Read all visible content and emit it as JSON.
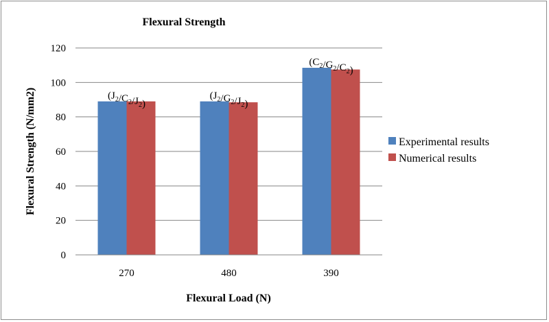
{
  "chart_data": {
    "type": "bar",
    "title": "Flexural Strength",
    "xlabel": "Flexural Load (N)",
    "ylabel": "Flexural Strength (N/mm2)",
    "categories": [
      "270",
      "480",
      "390"
    ],
    "category_annotations": [
      {
        "parts": [
          [
            "J",
            "2"
          ],
          [
            "/C",
            "2"
          ],
          [
            "/J",
            "2"
          ]
        ]
      },
      {
        "parts": [
          [
            "J",
            "2"
          ],
          [
            "/G",
            "2"
          ],
          [
            "/J",
            "2"
          ]
        ]
      },
      {
        "parts": [
          [
            "C",
            "2"
          ],
          [
            "/G",
            "2"
          ],
          [
            "/C",
            "2"
          ]
        ]
      }
    ],
    "series": [
      {
        "name": "Experimental results",
        "values": [
          89,
          89,
          108.5
        ],
        "color": "#4f81bd"
      },
      {
        "name": "Numerical results",
        "values": [
          89,
          88.5,
          107.5
        ],
        "color": "#c0504d"
      }
    ],
    "ylim": [
      0,
      120
    ],
    "yticks": [
      0,
      20,
      40,
      60,
      80,
      100,
      120
    ],
    "grid": true,
    "legend_position": "right"
  }
}
